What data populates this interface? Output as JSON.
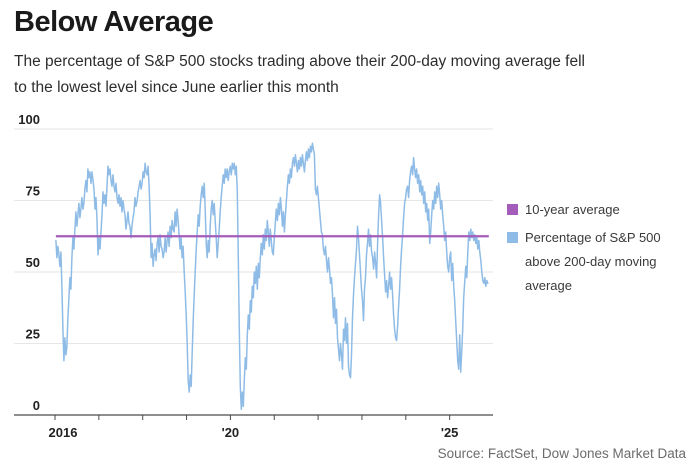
{
  "header": {
    "title": "Below Average",
    "subtitle_lines": [
      "The percentage of S&P 500 stocks trading above their 200-day moving average fell",
      "to the lowest level since June earlier this month"
    ]
  },
  "chart_data": {
    "type": "line",
    "title": "Below Average",
    "xlabel": "",
    "ylabel": "",
    "ylim": [
      0,
      100
    ],
    "grid": true,
    "legend_position": "right",
    "yticks": [
      0,
      25,
      50,
      75,
      100
    ],
    "xticks": [
      {
        "year": 2016,
        "label": "2016"
      },
      {
        "year": 2017,
        "label": ""
      },
      {
        "year": 2018,
        "label": ""
      },
      {
        "year": 2019,
        "label": ""
      },
      {
        "year": 2020,
        "label": "'20"
      },
      {
        "year": 2021,
        "label": ""
      },
      {
        "year": 2022,
        "label": ""
      },
      {
        "year": 2023,
        "label": ""
      },
      {
        "year": 2024,
        "label": ""
      },
      {
        "year": 2025,
        "label": "'25"
      }
    ],
    "average_line": {
      "name": "10-year average",
      "value": 62.5,
      "color": "#a45cba"
    },
    "series": {
      "name": "Percentage of S&P 500 above 200-day moving average",
      "color": "#8fbce6",
      "x_start": 2016.02,
      "x_end": 2025.87,
      "values": [
        61,
        55,
        59,
        56,
        52,
        57,
        45,
        30,
        19,
        27,
        21,
        24,
        34,
        41,
        48,
        44,
        55,
        62,
        58,
        65,
        71,
        66,
        70,
        74,
        69,
        72,
        76,
        72,
        74,
        79,
        82,
        78,
        86,
        83,
        85,
        81,
        85,
        82,
        79,
        72,
        76,
        68,
        56,
        62,
        58,
        64,
        70,
        78,
        74,
        77,
        73,
        80,
        87,
        84,
        86,
        82,
        80,
        84,
        80,
        78,
        81,
        76,
        74,
        77,
        73,
        76,
        71,
        75,
        72,
        70,
        65,
        68,
        71,
        67,
        66,
        62,
        66,
        69,
        71,
        76,
        73,
        75,
        78,
        80,
        82,
        79,
        81,
        85,
        83,
        88,
        85,
        84,
        87,
        80,
        70,
        55,
        60,
        52,
        56,
        58,
        54,
        60,
        62,
        57,
        63,
        59,
        58,
        55,
        57,
        62,
        57,
        61,
        64,
        59,
        66,
        62,
        68,
        65,
        64,
        71,
        66,
        72,
        68,
        63,
        58,
        62,
        55,
        59,
        50,
        43,
        35,
        25,
        12,
        8,
        14,
        10,
        22,
        33,
        42,
        50,
        58,
        64,
        70,
        66,
        73,
        77,
        80,
        76,
        81,
        72,
        60,
        55,
        61,
        57,
        66,
        72,
        75,
        70,
        74,
        68,
        62,
        55,
        60,
        65,
        71,
        76,
        80,
        84,
        81,
        86,
        83,
        86,
        82,
        85,
        87,
        84,
        88,
        86,
        88,
        84,
        87,
        78,
        55,
        30,
        10,
        2,
        8,
        3,
        12,
        20,
        16,
        28,
        35,
        30,
        40,
        36,
        45,
        41,
        50,
        46,
        52,
        44,
        53,
        48,
        55,
        60,
        56,
        63,
        58,
        65,
        61,
        68,
        64,
        59,
        65,
        61,
        57,
        56,
        62,
        67,
        72,
        68,
        74,
        70,
        76,
        72,
        66,
        71,
        64,
        70,
        75,
        80,
        84,
        81,
        86,
        83,
        88,
        90,
        87,
        91,
        88,
        85,
        89,
        86,
        90,
        87,
        91,
        88,
        85,
        89,
        92,
        89,
        93,
        90,
        94,
        92,
        95,
        93,
        91,
        79,
        77,
        80,
        76,
        72,
        68,
        64,
        63,
        58,
        56,
        59,
        54,
        50,
        55,
        51,
        46,
        48,
        42,
        34,
        41,
        32,
        37,
        27,
        23,
        19,
        25,
        21,
        16,
        30,
        26,
        34,
        25,
        32,
        17,
        14,
        13,
        21,
        34,
        42,
        48,
        53,
        58,
        66,
        62,
        56,
        50,
        44,
        40,
        33,
        44,
        48,
        56,
        60,
        65,
        59,
        63,
        57,
        55,
        51,
        57,
        53,
        48,
        60,
        70,
        77,
        74,
        68,
        62,
        55,
        49,
        43,
        47,
        41,
        45,
        50,
        44,
        48,
        42,
        35,
        30,
        27,
        26,
        31,
        38,
        44,
        52,
        58,
        63,
        69,
        74,
        76,
        79,
        80,
        76,
        82,
        85,
        87,
        84,
        90,
        86,
        83,
        86,
        81,
        84,
        78,
        82,
        77,
        80,
        74,
        78,
        71,
        74,
        68,
        72,
        60,
        64,
        70,
        75,
        72,
        78,
        74,
        80,
        76,
        81,
        77,
        72,
        75,
        70,
        66,
        61,
        64,
        57,
        52,
        50,
        55,
        57,
        47,
        53,
        45,
        40,
        33,
        26,
        19,
        16,
        28,
        15,
        22,
        30,
        41,
        47,
        52,
        48,
        57,
        64,
        61,
        65,
        62,
        64,
        61,
        63,
        60,
        62,
        58,
        61,
        57,
        54,
        50,
        47,
        46,
        48,
        45,
        47,
        46
      ]
    }
  },
  "legend": {
    "items": [
      {
        "label": "10-year average",
        "color": "#a45cba"
      },
      {
        "label": "Percentage of S&P 500 above 200-day moving average",
        "color": "#8fbce6"
      }
    ]
  },
  "source": "Source: FactSet, Dow Jones Market Data"
}
